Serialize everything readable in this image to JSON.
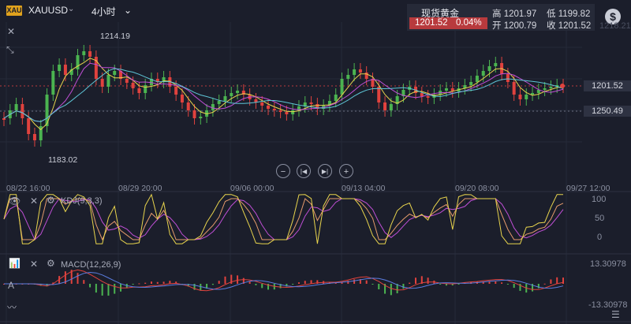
{
  "symbol": {
    "badge": "XAU",
    "name": "XAUUSD",
    "timeframe": "4小时"
  },
  "quote": {
    "name": "现货黄金",
    "price": "1201.52",
    "change_pct": "0.04%",
    "high": "高 1201.97",
    "low": "低 1199.82",
    "open": "开 1200.79",
    "close": "收 1201.52"
  },
  "main_chart": {
    "annot_high": "1214.19",
    "annot_low": "1183.02",
    "axis_top": "1218.21",
    "price_label": "1201.52",
    "line_label": "1250.49"
  },
  "time_labels": [
    "08/22 16:00",
    "08/29 20:00",
    "09/06 00:00",
    "09/13 04:00",
    "09/20 08:00",
    "09/27 12:00"
  ],
  "controls": [
    "zoom-out",
    "prev",
    "next",
    "zoom-in"
  ],
  "kdj": {
    "title": "KDJ(9,3,3)",
    "ticks": [
      "100",
      "50",
      "0"
    ]
  },
  "macd": {
    "title": "MACD(12,26,9)",
    "top": "13.30978",
    "bottom": "-13.30978"
  },
  "colors": {
    "bg": "#1b1e2b",
    "up": "#4bb450",
    "down": "#e0423e",
    "k": "#e8d44d",
    "d": "#e59a6c",
    "j": "#c04fd6",
    "ma_cyan": "#5ec5d6"
  },
  "icons": [
    "close-icon",
    "collapse-arrows-icon",
    "dollar-icon",
    "gear-icon",
    "eye-icon",
    "chart-indicator-icon"
  ]
}
